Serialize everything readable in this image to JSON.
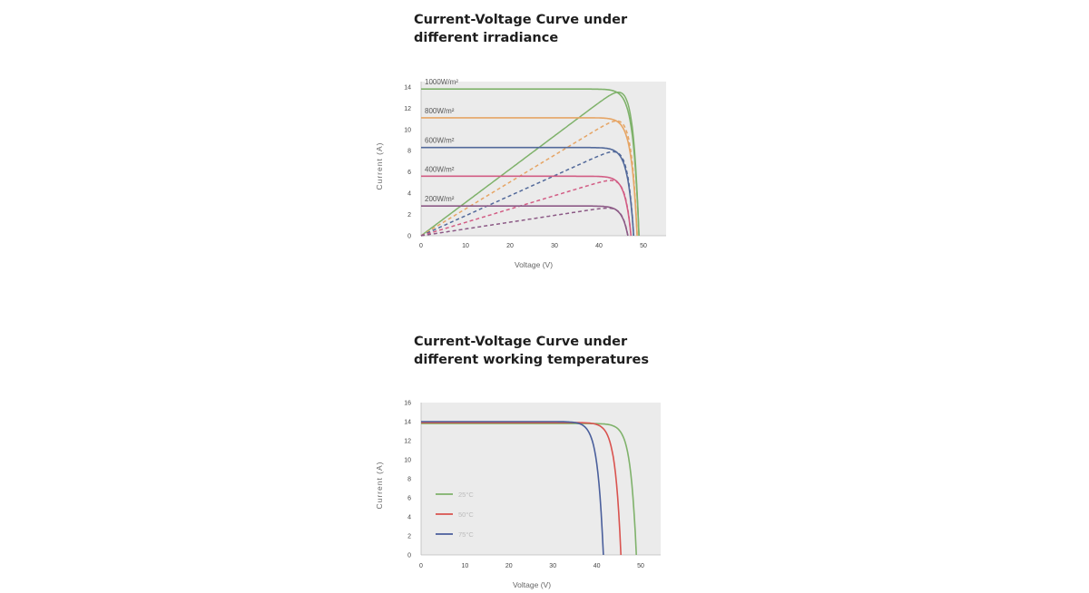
{
  "chart_data": [
    {
      "type": "line",
      "title_line1": "Current-Voltage Curve under",
      "title_line2": "different irradiance",
      "xlabel": "Voltage (V)",
      "ylabel": "Current (A)",
      "xlim": [
        0,
        55
      ],
      "ylim": [
        0,
        14.5
      ],
      "x_ticks": [
        "0",
        "10",
        "20",
        "30",
        "40",
        "50"
      ],
      "y_ticks": [
        "0",
        "2",
        "4",
        "6",
        "8",
        "10",
        "12",
        "14"
      ],
      "grid": false,
      "background": "#ebebeb",
      "series": [
        {
          "name": "1000W/m²",
          "color": "#7fb26b",
          "isc": 13.8,
          "voc": 49.0,
          "vmp": 42.0,
          "imp": 13.5
        },
        {
          "name": "800W/m²",
          "color": "#e6a565",
          "isc": 11.1,
          "voc": 48.6,
          "vmp": 41.0,
          "imp": 10.8
        },
        {
          "name": "600W/m²",
          "color": "#52699a",
          "isc": 8.3,
          "voc": 47.8,
          "vmp": 40.0,
          "imp": 7.9
        },
        {
          "name": "400W/m²",
          "color": "#d25c84",
          "isc": 5.6,
          "voc": 47.2,
          "vmp": 39.0,
          "imp": 5.2
        },
        {
          "name": "200W/m²",
          "color": "#8c5a86",
          "isc": 2.8,
          "voc": 46.5,
          "vmp": 38.0,
          "imp": 2.6
        }
      ]
    },
    {
      "type": "line",
      "title_line1": "Current-Voltage Curve under",
      "title_line2": "different working temperatures",
      "xlabel": "Voltage (V)",
      "ylabel": "Current (A)",
      "xlim": [
        0,
        55
      ],
      "ylim": [
        0,
        16
      ],
      "x_ticks": [
        "0",
        "10",
        "20",
        "30",
        "40",
        "50"
      ],
      "y_ticks": [
        "0",
        "2",
        "4",
        "6",
        "8",
        "10",
        "12",
        "14",
        "16"
      ],
      "grid": false,
      "background": "#ebebeb",
      "legend_position": "left",
      "series": [
        {
          "name": "25°C",
          "color": "#7fb26b",
          "isc": 13.8,
          "voc": 49.0
        },
        {
          "name": "50°C",
          "color": "#d9534f",
          "isc": 13.9,
          "voc": 45.5
        },
        {
          "name": "75°C",
          "color": "#4a5f9c",
          "isc": 14.0,
          "voc": 41.5
        }
      ]
    }
  ]
}
